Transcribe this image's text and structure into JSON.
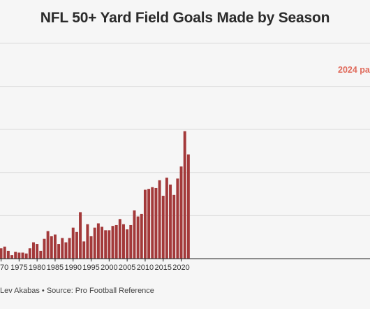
{
  "title": "NFL 50+ Yard Field Goals Made by Season",
  "annotation": "2024 pa",
  "source": "Lev Akabas • Source: Pro Football Reference",
  "colors": {
    "bar": "#a3393a",
    "annotation": "#e06b5c",
    "grid": "#dcdcdc",
    "axis": "#222222",
    "background": "#f6f6f6"
  },
  "chart_data": {
    "type": "bar",
    "title": "NFL 50+ Yard Field Goals Made by Season",
    "xlabel": "",
    "ylabel": "",
    "grid": true,
    "x_tick_labels": [
      "70",
      "1975",
      "1980",
      "1985",
      "1990",
      "1995",
      "2000",
      "2005",
      "2010",
      "2015",
      "2020"
    ],
    "categories": [
      1969,
      1970,
      1971,
      1972,
      1973,
      1974,
      1975,
      1976,
      1977,
      1978,
      1979,
      1980,
      1981,
      1982,
      1983,
      1984,
      1985,
      1986,
      1987,
      1988,
      1989,
      1990,
      1991,
      1992,
      1993,
      1994,
      1995,
      1996,
      1997,
      1998,
      1999,
      2000,
      2001,
      2002,
      2003,
      2004,
      2005,
      2006,
      2007,
      2008,
      2009,
      2010,
      2011,
      2012,
      2013,
      2014,
      2015,
      2016,
      2017,
      2018,
      2019,
      2020,
      2021,
      2022
    ],
    "values": [
      17,
      12,
      14,
      9,
      4,
      8,
      7,
      7,
      6,
      12,
      19,
      17,
      9,
      23,
      32,
      26,
      28,
      17,
      24,
      19,
      24,
      36,
      31,
      54,
      20,
      40,
      26,
      36,
      41,
      37,
      33,
      33,
      38,
      39,
      46,
      40,
      34,
      39,
      56,
      49,
      52,
      80,
      81,
      83,
      82,
      91,
      73,
      94,
      86,
      74,
      93,
      107,
      148,
      121
    ],
    "y_max": 280
  }
}
